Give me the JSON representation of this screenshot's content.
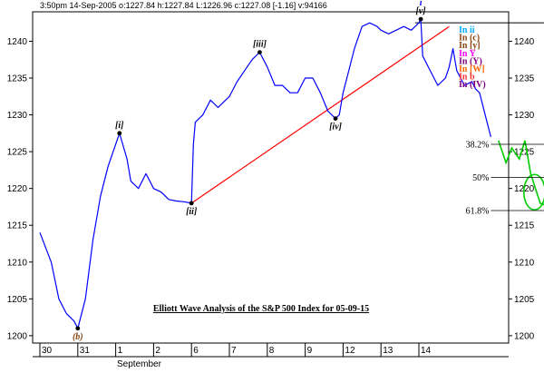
{
  "header": {
    "quote": "3:50pm 14-Sep-2005  o:1227.84 h:1227.84 L:1226.96 c:1227.08 [-1.16] v:94166"
  },
  "chart_data": {
    "type": "line",
    "title": "Elliott Wave Analysis of the S&P 500 Index for 05-09-15",
    "xlabel": "",
    "ylabel": "",
    "ylim": [
      1199,
      1244
    ],
    "y_ticks": [
      1200,
      1205,
      1210,
      1215,
      1220,
      1225,
      1230,
      1235,
      1240
    ],
    "grid": false,
    "x_tick_labels": [
      "30",
      "31",
      "1",
      "2",
      "6",
      "7",
      "8",
      "9",
      "12",
      "13",
      "14"
    ],
    "x_sublabel": "September",
    "price_series": {
      "name": "S&P 500",
      "color": "#0000ff",
      "x": [
        0,
        0.3,
        0.5,
        0.7,
        0.9,
        1.0,
        1.2,
        1.4,
        1.6,
        1.8,
        2.0,
        2.1,
        2.3,
        2.4,
        2.6,
        2.8,
        3.0,
        3.2,
        3.4,
        3.6,
        3.8,
        4.0,
        4.05,
        4.1,
        4.3,
        4.5,
        4.7,
        4.9,
        5.0,
        5.2,
        5.4,
        5.6,
        5.8,
        6.0,
        6.2,
        6.4,
        6.6,
        6.8,
        7.0,
        7.2,
        7.4,
        7.6,
        7.8,
        7.9,
        8.0,
        8.1,
        8.3,
        8.5,
        8.7,
        8.9,
        9.0,
        9.2,
        9.4,
        9.6,
        9.8,
        10.0,
        10.05,
        10.1,
        10.3,
        10.5,
        10.7,
        10.8,
        10.9,
        11.0,
        11.2,
        11.4,
        11.5,
        11.6,
        11.8,
        11.9
      ],
      "y": [
        1214,
        1210,
        1205,
        1203,
        1202,
        1201,
        1205,
        1213,
        1219,
        1223,
        1226,
        1227.5,
        1224,
        1221,
        1220,
        1222,
        1220,
        1219.5,
        1218.5,
        1218.3,
        1218.2,
        1218,
        1226,
        1229,
        1230,
        1232,
        1231,
        1232,
        1232.5,
        1234.5,
        1236,
        1237.5,
        1238.5,
        1236.5,
        1234,
        1234,
        1233,
        1233,
        1235,
        1235,
        1233,
        1230.5,
        1229.5,
        1230,
        1233,
        1235,
        1239,
        1242,
        1242.5,
        1242,
        1241.5,
        1241,
        1241.5,
        1242,
        1241.5,
        1242.5,
        1243,
        1238,
        1236,
        1234,
        1235,
        1236.5,
        1239,
        1236,
        1234,
        1234.5,
        1233.5,
        1233,
        1229,
        1227
      ]
    },
    "trendline": {
      "color": "#ff0000",
      "x": [
        4.0,
        10.8
      ],
      "y": [
        1218,
        1242
      ]
    },
    "resistance_line": {
      "color": "#000000",
      "x": [
        9.9,
        13.3
      ],
      "y": [
        1242.5,
        1242.5
      ]
    },
    "fib_levels": [
      {
        "label": "38.2%",
        "value": 1226,
        "x": [
          11.9,
          13.3
        ]
      },
      {
        "label": "50%",
        "value": 1221.5,
        "x": [
          11.9,
          13.3
        ]
      },
      {
        "label": "61.8%",
        "value": 1217,
        "x": [
          11.9,
          13.3
        ]
      }
    ],
    "projection": {
      "color": "#00cc00",
      "x": [
        12.1,
        12.3,
        12.45,
        12.65,
        12.8,
        12.95,
        13.2,
        13.45
      ],
      "y": [
        1226.5,
        1223.5,
        1225.5,
        1224,
        1226.5,
        1222,
        1218,
        1217.5
      ]
    },
    "target_ellipse": {
      "color": "#00cc00",
      "x": 13.05,
      "y": 1219.5,
      "rx": 0.28,
      "ry": 2.4
    },
    "wave_labels": [
      {
        "text": "[i]",
        "x": 2.1,
        "y": 1227.5,
        "position": "above",
        "color": "#000000"
      },
      {
        "text": "[ii]",
        "x": 4.0,
        "y": 1218,
        "position": "below",
        "color": "#000000"
      },
      {
        "text": "[iii]",
        "x": 5.8,
        "y": 1238.5,
        "position": "above",
        "color": "#000000"
      },
      {
        "text": "[iv]",
        "x": 7.8,
        "y": 1229.5,
        "position": "below",
        "color": "#000000"
      },
      {
        "text": "[v]",
        "x": 10.05,
        "y": 1243,
        "position": "above",
        "color": "#000000"
      },
      {
        "text": "i",
        "x": 10.05,
        "y": 1243,
        "position": "above2",
        "color": "#0000ff"
      },
      {
        "text": "(b)",
        "x": 1.0,
        "y": 1201,
        "position": "below",
        "color": "#8b4513"
      }
    ],
    "legend": [
      {
        "text": "In ii",
        "color": "#00aaff"
      },
      {
        "text": "In (c)",
        "color": "#8b4513"
      },
      {
        "text": "In [y]",
        "color": "#8b4513"
      },
      {
        "text": "In Y",
        "color": "#ff00ff"
      },
      {
        "text": "In (Y)",
        "color": "#800080"
      },
      {
        "text": "In [W]",
        "color": "#ff6600"
      },
      {
        "text": "In b",
        "color": "#ff3333"
      },
      {
        "text": "In (IV)",
        "color": "#800080"
      }
    ]
  }
}
